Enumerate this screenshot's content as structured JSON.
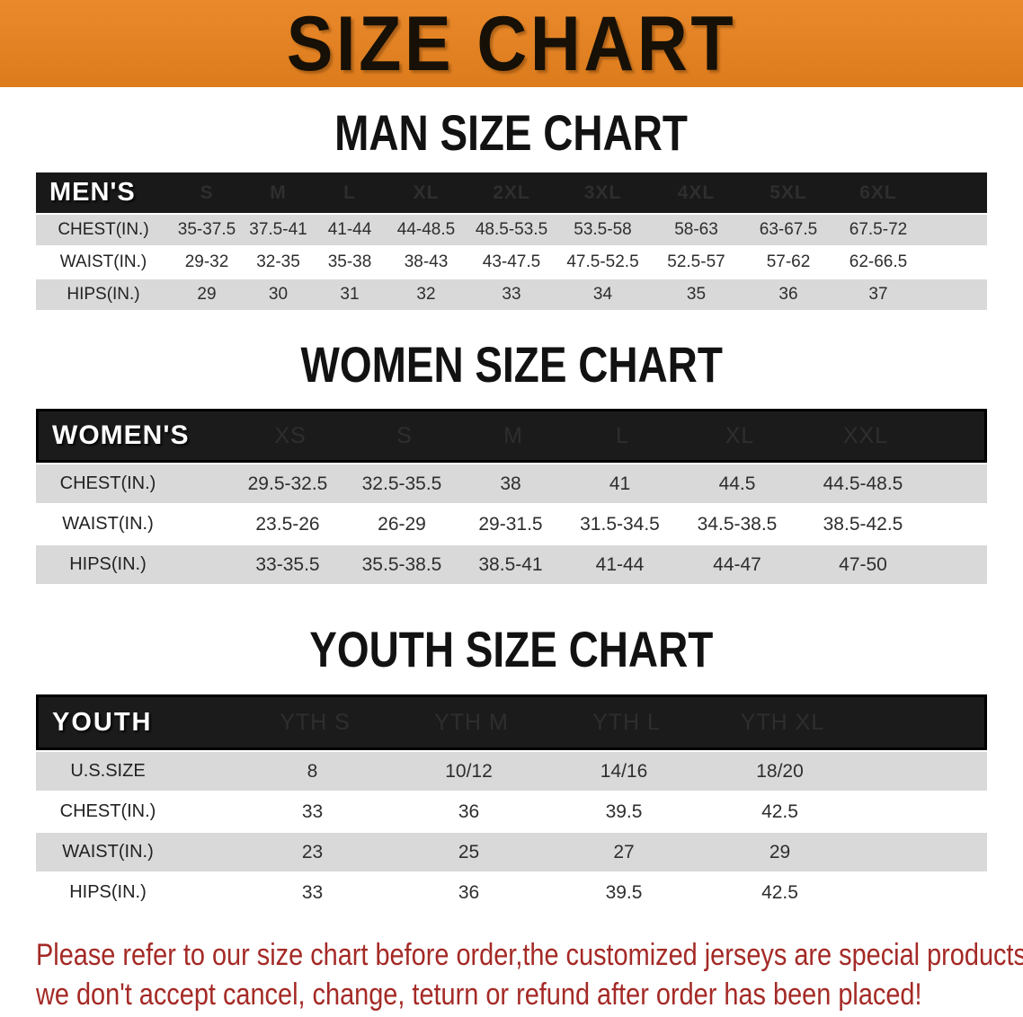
{
  "banner": {
    "title": "SIZE CHART"
  },
  "colors": {
    "banner_bg": "#e8821e",
    "header_bar": "#191919",
    "row_stripe": "#d9d9d9",
    "heading_text": "#121212",
    "disclaimer_text": "#a42a26"
  },
  "sections": [
    {
      "heading": "MAN SIZE CHART",
      "table": {
        "header_label": "MEN'S",
        "columns": [
          "S",
          "M",
          "L",
          "XL",
          "2XL",
          "3XL",
          "4XL",
          "5XL",
          "6XL"
        ],
        "rows": [
          {
            "label": "CHEST(IN.)",
            "values": [
              "35-37.5",
              "37.5-41",
              "41-44",
              "44-48.5",
              "48.5-53.5",
              "53.5-58",
              "58-63",
              "63-67.5",
              "67.5-72"
            ]
          },
          {
            "label": "WAIST(IN.)",
            "values": [
              "29-32",
              "32-35",
              "35-38",
              "38-43",
              "43-47.5",
              "47.5-52.5",
              "52.5-57",
              "57-62",
              "62-66.5"
            ]
          },
          {
            "label": "HIPS(IN.)",
            "values": [
              "29",
              "30",
              "31",
              "32",
              "33",
              "34",
              "35",
              "36",
              "37"
            ]
          }
        ]
      }
    },
    {
      "heading": "WOMEN SIZE CHART",
      "table": {
        "header_label": "WOMEN'S",
        "columns": [
          "XS",
          "S",
          "M",
          "L",
          "XL",
          "XXL"
        ],
        "rows": [
          {
            "label": "CHEST(IN.)",
            "values": [
              "29.5-32.5",
              "32.5-35.5",
              "38",
              "41",
              "44.5",
              "44.5-48.5"
            ]
          },
          {
            "label": "WAIST(IN.)",
            "values": [
              "23.5-26",
              "26-29",
              "29-31.5",
              "31.5-34.5",
              "34.5-38.5",
              "38.5-42.5"
            ]
          },
          {
            "label": "HIPS(IN.)",
            "values": [
              "33-35.5",
              "35.5-38.5",
              "38.5-41",
              "41-44",
              "44-47",
              "47-50"
            ]
          }
        ]
      }
    },
    {
      "heading": "YOUTH SIZE CHART",
      "table": {
        "header_label": "YOUTH",
        "columns": [
          "YTH S",
          "YTH M",
          "YTH L",
          "YTH XL"
        ],
        "rows": [
          {
            "label": "U.S.SIZE",
            "values": [
              "8",
              "10/12",
              "14/16",
              "18/20"
            ]
          },
          {
            "label": "CHEST(IN.)",
            "values": [
              "33",
              "36",
              "39.5",
              "42.5"
            ]
          },
          {
            "label": "WAIST(IN.)",
            "values": [
              "23",
              "25",
              "27",
              "29"
            ]
          },
          {
            "label": "HIPS(IN.)",
            "values": [
              "33",
              "36",
              "39.5",
              "42.5"
            ]
          }
        ]
      }
    }
  ],
  "disclaimer": {
    "lines": [
      "Please refer to our size chart before order,the customized jerseys are special products,",
      "we don't accept cancel, change, teturn or refund after order has been placed!"
    ]
  }
}
